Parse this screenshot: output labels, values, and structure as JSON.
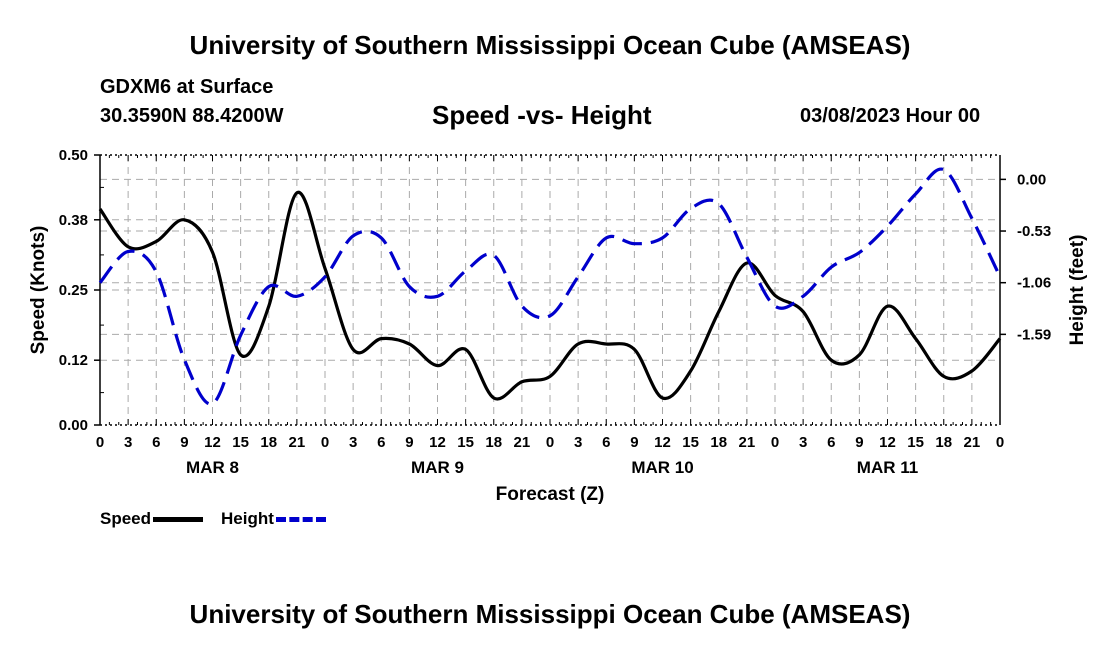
{
  "header": {
    "title": "University of Southern Mississippi Ocean Cube (AMSEAS)",
    "station": "GDXM6 at Surface",
    "coords": "30.3590N  88.4200W",
    "subtitle": "Speed -vs- Height",
    "datetime": "03/08/2023 Hour 00"
  },
  "footer": {
    "title": "University of Southern Mississippi Ocean Cube (AMSEAS)"
  },
  "legend": {
    "speed_label": "Speed",
    "height_label": "Height"
  },
  "chart_data": {
    "type": "line",
    "title": "Speed -vs- Height",
    "xlabel": "Forecast (Z)",
    "ylabel": "Speed (Knots)",
    "y2label": "Height (feet)",
    "x_hours_range": [
      0,
      96
    ],
    "x_tick_step_hours": 3,
    "x_tick_labels": [
      "0",
      "3",
      "6",
      "9",
      "12",
      "15",
      "18",
      "21",
      "0",
      "3",
      "6",
      "9",
      "12",
      "15",
      "18",
      "21",
      "0",
      "3",
      "6",
      "9",
      "12",
      "15",
      "18",
      "21",
      "0",
      "3",
      "6",
      "9",
      "12",
      "15",
      "18",
      "21",
      "0"
    ],
    "day_labels": [
      {
        "label": "MAR 8",
        "hour": 12
      },
      {
        "label": "MAR 9",
        "hour": 36
      },
      {
        "label": "MAR 10",
        "hour": 60
      },
      {
        "label": "MAR 11",
        "hour": 84
      }
    ],
    "ylim": [
      0,
      0.5
    ],
    "y_ticks": [
      0.0,
      0.12,
      0.25,
      0.38,
      0.5
    ],
    "y_tick_labels": [
      "0.00",
      "0.12",
      "0.25",
      "0.38",
      "0.50"
    ],
    "y2lim": [
      -2.52,
      0.25
    ],
    "y2_ticks": [
      0.0,
      -0.53,
      -1.06,
      -1.59
    ],
    "y2_tick_labels": [
      "0.00",
      "-0.53",
      "-1.06",
      "-1.59"
    ],
    "grid": true,
    "colors": {
      "speed": "#000000",
      "height": "#0000cc",
      "grid": "#aaaaaa"
    },
    "series": [
      {
        "name": "Speed",
        "axis": "left",
        "style": "solid",
        "x": [
          0,
          3,
          6,
          9,
          12,
          15,
          18,
          21,
          24,
          27,
          30,
          33,
          36,
          39,
          42,
          45,
          48,
          51,
          54,
          57,
          60,
          63,
          66,
          69,
          72,
          75,
          78,
          81,
          84,
          87,
          90,
          93,
          96
        ],
        "values": [
          0.4,
          0.33,
          0.34,
          0.38,
          0.32,
          0.13,
          0.22,
          0.43,
          0.29,
          0.14,
          0.16,
          0.15,
          0.11,
          0.14,
          0.05,
          0.08,
          0.09,
          0.15,
          0.15,
          0.14,
          0.05,
          0.1,
          0.21,
          0.3,
          0.24,
          0.21,
          0.12,
          0.13,
          0.22,
          0.16,
          0.09,
          0.1,
          0.16
        ]
      },
      {
        "name": "Height",
        "axis": "right",
        "style": "dashed",
        "x": [
          0,
          3,
          6,
          9,
          12,
          15,
          18,
          21,
          24,
          27,
          30,
          33,
          36,
          39,
          42,
          45,
          48,
          51,
          54,
          57,
          60,
          63,
          66,
          69,
          72,
          75,
          78,
          81,
          84,
          87,
          90,
          93,
          96
        ],
        "values": [
          -1.06,
          -0.74,
          -0.95,
          -1.85,
          -2.3,
          -1.6,
          -1.1,
          -1.2,
          -1.0,
          -0.58,
          -0.6,
          -1.1,
          -1.2,
          -0.94,
          -0.78,
          -1.3,
          -1.4,
          -1.0,
          -0.6,
          -0.66,
          -0.6,
          -0.3,
          -0.25,
          -0.8,
          -1.3,
          -1.2,
          -0.9,
          -0.75,
          -0.48,
          -0.15,
          0.1,
          -0.4,
          -1.0
        ]
      }
    ]
  }
}
